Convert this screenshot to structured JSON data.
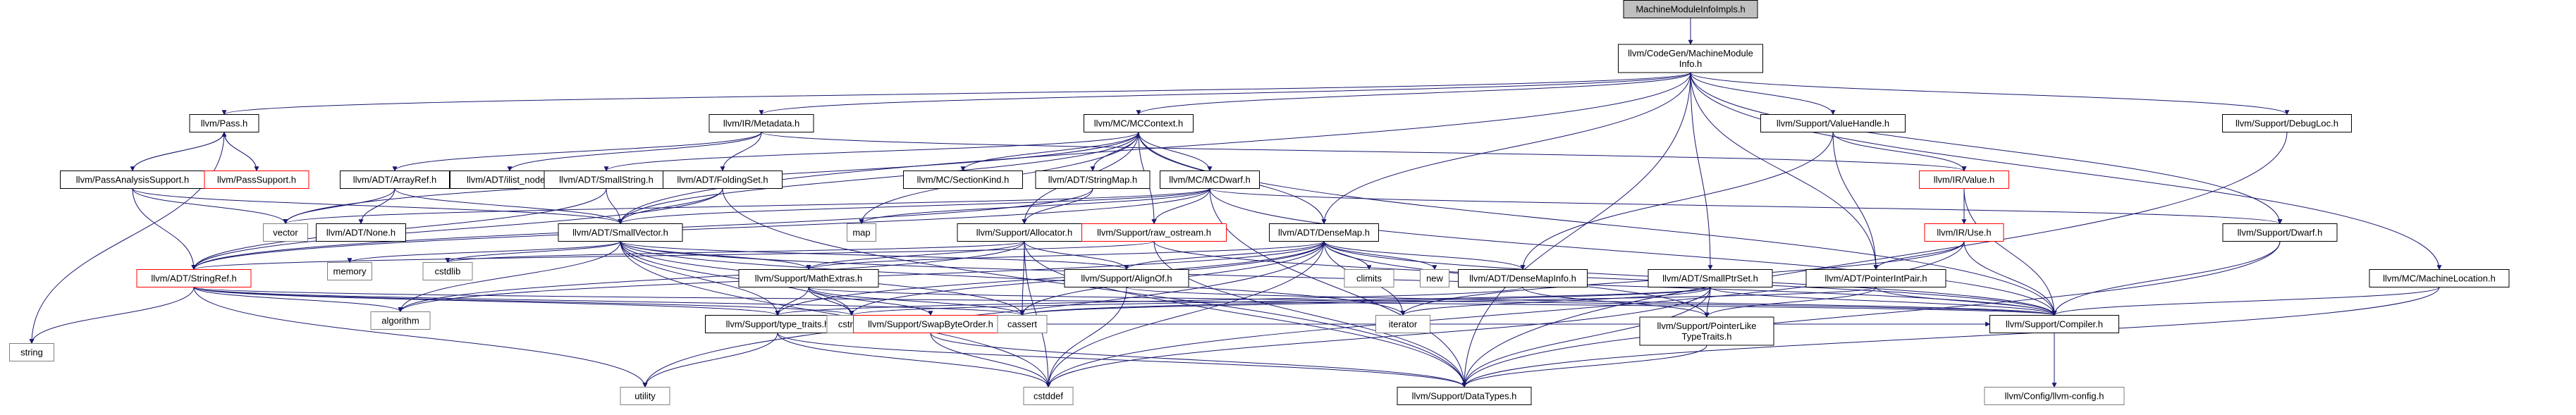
{
  "colors": {
    "edge": "#191970",
    "node_border": "#000000",
    "node_border_red": "#ff0000",
    "root_fill": "#bfbfbf",
    "grey_text": "#7f7f7f",
    "fill": "#ffffff"
  },
  "nodes": [
    {
      "id": "root",
      "lines": [
        "MachineModuleInfoImpls.h"
      ],
      "style": "root"
    },
    {
      "id": "mmi",
      "lines": [
        "llvm/CodeGen/MachineModule",
        "Info.h"
      ],
      "style": "normal"
    },
    {
      "id": "pass",
      "lines": [
        "llvm/Pass.h"
      ],
      "style": "normal"
    },
    {
      "id": "metadata",
      "lines": [
        "llvm/IR/Metadata.h"
      ],
      "style": "normal"
    },
    {
      "id": "mccontext",
      "lines": [
        "llvm/MC/MCContext.h"
      ],
      "style": "normal"
    },
    {
      "id": "valuehandle",
      "lines": [
        "llvm/Support/ValueHandle.h"
      ],
      "style": "normal"
    },
    {
      "id": "debugloc",
      "lines": [
        "llvm/Support/DebugLoc.h"
      ],
      "style": "normal"
    },
    {
      "id": "passanalysis",
      "lines": [
        "llvm/PassAnalysisSupport.h"
      ],
      "style": "normal"
    },
    {
      "id": "passsupport",
      "lines": [
        "llvm/PassSupport.h"
      ],
      "style": "red"
    },
    {
      "id": "arrayref",
      "lines": [
        "llvm/ADT/ArrayRef.h"
      ],
      "style": "normal"
    },
    {
      "id": "ilistnode",
      "lines": [
        "llvm/ADT/ilist_node.h"
      ],
      "style": "normal"
    },
    {
      "id": "smallstring",
      "lines": [
        "llvm/ADT/SmallString.h"
      ],
      "style": "normal"
    },
    {
      "id": "foldingset",
      "lines": [
        "llvm/ADT/FoldingSet.h"
      ],
      "style": "normal"
    },
    {
      "id": "sectionkind",
      "lines": [
        "llvm/MC/SectionKind.h"
      ],
      "style": "normal"
    },
    {
      "id": "stringmap",
      "lines": [
        "llvm/ADT/StringMap.h"
      ],
      "style": "normal"
    },
    {
      "id": "mcdwarf",
      "lines": [
        "llvm/MC/MCDwarf.h"
      ],
      "style": "normal"
    },
    {
      "id": "irvalue",
      "lines": [
        "llvm/IR/Value.h"
      ],
      "style": "red"
    },
    {
      "id": "vector",
      "lines": [
        "vector"
      ],
      "style": "grey"
    },
    {
      "id": "none",
      "lines": [
        "llvm/ADT/None.h"
      ],
      "style": "normal"
    },
    {
      "id": "smallvector",
      "lines": [
        "llvm/ADT/SmallVector.h"
      ],
      "style": "normal"
    },
    {
      "id": "map",
      "lines": [
        "map"
      ],
      "style": "grey"
    },
    {
      "id": "allocator",
      "lines": [
        "llvm/Support/Allocator.h"
      ],
      "style": "normal"
    },
    {
      "id": "rawostream",
      "lines": [
        "llvm/Support/raw_ostream.h"
      ],
      "style": "red"
    },
    {
      "id": "densemap",
      "lines": [
        "llvm/ADT/DenseMap.h"
      ],
      "style": "normal"
    },
    {
      "id": "iruse",
      "lines": [
        "llvm/IR/Use.h"
      ],
      "style": "red"
    },
    {
      "id": "dwarf",
      "lines": [
        "llvm/Support/Dwarf.h"
      ],
      "style": "normal"
    },
    {
      "id": "stringref",
      "lines": [
        "llvm/ADT/StringRef.h"
      ],
      "style": "red"
    },
    {
      "id": "memory",
      "lines": [
        "memory"
      ],
      "style": "grey"
    },
    {
      "id": "cstdlib",
      "lines": [
        "cstdlib"
      ],
      "style": "grey"
    },
    {
      "id": "mathextras",
      "lines": [
        "llvm/Support/MathExtras.h"
      ],
      "style": "normal"
    },
    {
      "id": "alignof",
      "lines": [
        "llvm/Support/AlignOf.h"
      ],
      "style": "normal"
    },
    {
      "id": "climits",
      "lines": [
        "climits"
      ],
      "style": "grey"
    },
    {
      "id": "new",
      "lines": [
        "new"
      ],
      "style": "grey"
    },
    {
      "id": "densemapinfo",
      "lines": [
        "llvm/ADT/DenseMapInfo.h"
      ],
      "style": "normal"
    },
    {
      "id": "smallptrset",
      "lines": [
        "llvm/ADT/SmallPtrSet.h"
      ],
      "style": "normal"
    },
    {
      "id": "pointerintpair",
      "lines": [
        "llvm/ADT/PointerIntPair.h"
      ],
      "style": "normal"
    },
    {
      "id": "mclocation",
      "lines": [
        "llvm/MC/MachineLocation.h"
      ],
      "style": "normal"
    },
    {
      "id": "string",
      "lines": [
        "string"
      ],
      "style": "grey"
    },
    {
      "id": "algorithm",
      "lines": [
        "algorithm"
      ],
      "style": "grey"
    },
    {
      "id": "typetraits",
      "lines": [
        "llvm/Support/type_traits.h"
      ],
      "style": "normal"
    },
    {
      "id": "cstring",
      "lines": [
        "cstring"
      ],
      "style": "grey"
    },
    {
      "id": "swapbyteorder",
      "lines": [
        "llvm/Support/SwapByteOrder.h"
      ],
      "style": "red"
    },
    {
      "id": "cassert",
      "lines": [
        "cassert"
      ],
      "style": "grey"
    },
    {
      "id": "iterator",
      "lines": [
        "iterator"
      ],
      "style": "grey"
    },
    {
      "id": "pointerliketypetraits",
      "lines": [
        "llvm/Support/PointerLike",
        "TypeTraits.h"
      ],
      "style": "normal"
    },
    {
      "id": "compiler",
      "lines": [
        "llvm/Support/Compiler.h"
      ],
      "style": "normal"
    },
    {
      "id": "utility",
      "lines": [
        "utility"
      ],
      "style": "grey"
    },
    {
      "id": "cstddef",
      "lines": [
        "cstddef"
      ],
      "style": "grey"
    },
    {
      "id": "datatypes",
      "lines": [
        "llvm/Support/DataTypes.h"
      ],
      "style": "normal"
    },
    {
      "id": "llvmconfig",
      "lines": [
        "llvm/Config/llvm-config.h"
      ],
      "style": "grey"
    }
  ],
  "edges": [
    [
      "root",
      "mmi"
    ],
    [
      "mmi",
      "pass"
    ],
    [
      "mmi",
      "metadata"
    ],
    [
      "mmi",
      "mccontext"
    ],
    [
      "mmi",
      "valuehandle"
    ],
    [
      "mmi",
      "debugloc"
    ],
    [
      "mmi",
      "dwarf"
    ],
    [
      "mmi",
      "mclocation"
    ],
    [
      "mmi",
      "densemap"
    ],
    [
      "mmi",
      "smallptrset"
    ],
    [
      "mmi",
      "smallvector"
    ],
    [
      "mmi",
      "pointerintpair"
    ],
    [
      "mmi",
      "datatypes"
    ],
    [
      "pass",
      "passanalysis"
    ],
    [
      "pass",
      "passsupport"
    ],
    [
      "pass",
      "string"
    ],
    [
      "passanalysis",
      "pass"
    ],
    [
      "passanalysis",
      "vector"
    ],
    [
      "passanalysis",
      "smallvector"
    ],
    [
      "passanalysis",
      "stringref"
    ],
    [
      "passsupport",
      "pass"
    ],
    [
      "metadata",
      "arrayref"
    ],
    [
      "metadata",
      "ilistnode"
    ],
    [
      "metadata",
      "foldingset"
    ],
    [
      "metadata",
      "irvalue"
    ],
    [
      "mccontext",
      "smallstring"
    ],
    [
      "mccontext",
      "sectionkind"
    ],
    [
      "mccontext",
      "stringmap"
    ],
    [
      "mccontext",
      "mcdwarf"
    ],
    [
      "mccontext",
      "densemap"
    ],
    [
      "mccontext",
      "allocator"
    ],
    [
      "mccontext",
      "rawostream"
    ],
    [
      "mccontext",
      "smallvector"
    ],
    [
      "mccontext",
      "compiler"
    ],
    [
      "mccontext",
      "vector"
    ],
    [
      "mccontext",
      "map"
    ],
    [
      "valuehandle",
      "irvalue"
    ],
    [
      "valuehandle",
      "pointerintpair"
    ],
    [
      "valuehandle",
      "densemapinfo"
    ],
    [
      "debugloc",
      "datatypes"
    ],
    [
      "arrayref",
      "vector"
    ],
    [
      "arrayref",
      "none"
    ],
    [
      "arrayref",
      "smallvector"
    ],
    [
      "smallstring",
      "smallvector"
    ],
    [
      "smallstring",
      "stringref"
    ],
    [
      "foldingset",
      "smallvector"
    ],
    [
      "foldingset",
      "stringref"
    ],
    [
      "foldingset",
      "datatypes"
    ],
    [
      "stringmap",
      "allocator"
    ],
    [
      "stringmap",
      "stringref"
    ],
    [
      "mcdwarf",
      "dwarf"
    ],
    [
      "mcdwarf",
      "rawostream"
    ],
    [
      "mcdwarf",
      "compiler"
    ],
    [
      "mcdwarf",
      "stringref"
    ],
    [
      "mcdwarf",
      "vector"
    ],
    [
      "mcdwarf",
      "map"
    ],
    [
      "mcdwarf",
      "smallvector"
    ],
    [
      "mcdwarf",
      "datatypes"
    ],
    [
      "irvalue",
      "iruse"
    ],
    [
      "irvalue",
      "compiler"
    ],
    [
      "smallvector",
      "typetraits"
    ],
    [
      "smallvector",
      "mathextras"
    ],
    [
      "smallvector",
      "alignof"
    ],
    [
      "smallvector",
      "compiler"
    ],
    [
      "smallvector",
      "algorithm"
    ],
    [
      "smallvector",
      "cassert"
    ],
    [
      "smallvector",
      "cstddef"
    ],
    [
      "smallvector",
      "cstdlib"
    ],
    [
      "smallvector",
      "cstring"
    ],
    [
      "smallvector",
      "iterator"
    ],
    [
      "smallvector",
      "memory"
    ],
    [
      "allocator",
      "alignof"
    ],
    [
      "allocator",
      "mathextras"
    ],
    [
      "allocator",
      "datatypes"
    ],
    [
      "allocator",
      "algorithm"
    ],
    [
      "allocator",
      "cassert"
    ],
    [
      "allocator",
      "cstddef"
    ],
    [
      "allocator",
      "cstdlib"
    ],
    [
      "rawostream",
      "stringref"
    ],
    [
      "rawostream",
      "compiler"
    ],
    [
      "rawostream",
      "datatypes"
    ],
    [
      "densemap",
      "densemapinfo"
    ],
    [
      "densemap",
      "alignof"
    ],
    [
      "densemap",
      "compiler"
    ],
    [
      "densemap",
      "mathextras"
    ],
    [
      "densemap",
      "pointerliketypetraits"
    ],
    [
      "densemap",
      "typetraits"
    ],
    [
      "densemap",
      "algorithm"
    ],
    [
      "densemap",
      "cassert"
    ],
    [
      "densemap",
      "climits"
    ],
    [
      "densemap",
      "cstddef"
    ],
    [
      "densemap",
      "cstring"
    ],
    [
      "densemap",
      "iterator"
    ],
    [
      "densemap",
      "new"
    ],
    [
      "densemap",
      "utility"
    ],
    [
      "iruse",
      "pointerintpair"
    ],
    [
      "iruse",
      "compiler"
    ],
    [
      "iruse",
      "cstddef"
    ],
    [
      "iruse",
      "iterator"
    ],
    [
      "dwarf",
      "compiler"
    ],
    [
      "dwarf",
      "datatypes"
    ],
    [
      "stringref",
      "compiler"
    ],
    [
      "stringref",
      "typetraits"
    ],
    [
      "stringref",
      "algorithm"
    ],
    [
      "stringref",
      "cassert"
    ],
    [
      "stringref",
      "cstring"
    ],
    [
      "stringref",
      "limits"
    ],
    [
      "stringref",
      "string"
    ],
    [
      "stringref",
      "utility"
    ],
    [
      "mathextras",
      "compiler"
    ],
    [
      "mathextras",
      "swapbyteorder"
    ],
    [
      "mathextras",
      "typetraits"
    ],
    [
      "mathextras",
      "cassert"
    ],
    [
      "mathextras",
      "cstring"
    ],
    [
      "alignof",
      "compiler"
    ],
    [
      "alignof",
      "cstddef"
    ],
    [
      "densemapinfo",
      "pointerliketypetraits"
    ],
    [
      "densemapinfo",
      "typetraits"
    ],
    [
      "smallptrset",
      "compiler"
    ],
    [
      "smallptrset",
      "datatypes"
    ],
    [
      "smallptrset",
      "pointerliketypetraits"
    ],
    [
      "smallptrset",
      "cassert"
    ],
    [
      "smallptrset",
      "cstddef"
    ],
    [
      "smallptrset",
      "cstring"
    ],
    [
      "smallptrset",
      "iterator"
    ],
    [
      "pointerintpair",
      "compiler"
    ],
    [
      "pointerintpair",
      "pointerliketypetraits"
    ],
    [
      "pointerintpair",
      "cassert"
    ],
    [
      "mclocation",
      "compiler"
    ],
    [
      "mclocation",
      "datatypes"
    ],
    [
      "typetraits",
      "datatypes"
    ],
    [
      "typetraits",
      "cstddef"
    ],
    [
      "typetraits",
      "utility"
    ],
    [
      "swapbyteorder",
      "compiler"
    ],
    [
      "swapbyteorder",
      "datatypes"
    ],
    [
      "swapbyteorder",
      "cstddef"
    ],
    [
      "pointerliketypetraits",
      "datatypes"
    ],
    [
      "compiler",
      "llvmconfig"
    ],
    [
      "none",
      "none"
    ]
  ]
}
